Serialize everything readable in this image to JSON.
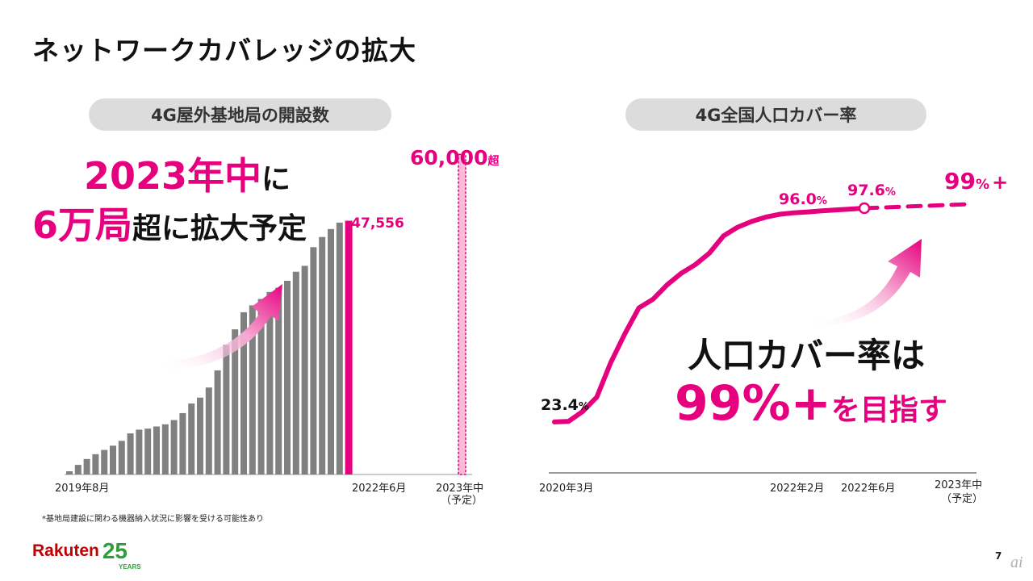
{
  "page": {
    "title": "ネットワークカバレッジの拡大",
    "page_number": "7",
    "footnote": "*基地局建設に関わる機器納入状況に影響を受ける可能性あり",
    "logo": {
      "word": "Rakuten",
      "number": "25",
      "years": "YEARS"
    },
    "watermark": "ai",
    "colors": {
      "accent": "#e6007e",
      "bar": "#808080",
      "pill": "#dcdcdc"
    }
  },
  "left_panel": {
    "pill_label": "4G屋外基地局の開設数",
    "headline": {
      "line1_pink": "2023年中",
      "line1_dark": "に",
      "line2_pink": "6万局",
      "line2_dark": "超に拡大予定"
    }
  },
  "right_panel": {
    "pill_label": "4G全国人口カバー率",
    "headline": {
      "line1": "人口カバー率は",
      "line2_pink": "99%+",
      "line2_dark": "を目指す"
    }
  },
  "chart_data": [
    {
      "type": "bar",
      "x_labels": {
        "start": "2019年8月",
        "mid": "2022年6月",
        "end_line1": "2023年中",
        "end_line2": "（予定）"
      },
      "values": [
        600,
        1800,
        2900,
        3800,
        4600,
        5400,
        6300,
        7700,
        8400,
        8600,
        9000,
        9400,
        10200,
        11500,
        13300,
        14400,
        16300,
        19500,
        24300,
        27200,
        30400,
        31700,
        32900,
        34200,
        35000,
        36300,
        38000,
        39100,
        42600,
        44500,
        46000,
        47200
      ],
      "highlight": {
        "label": "47,556",
        "value": 47556
      },
      "target": {
        "label": "60,000",
        "suffix": "超",
        "value": 60000
      },
      "ylim": [
        0,
        62000
      ]
    },
    {
      "type": "line",
      "x_labels": {
        "start": "2020年3月",
        "a": "2022年2月",
        "b": "2022年6月",
        "end_line1": "2023年中",
        "end_line2": "（予定）"
      },
      "points": [
        23.4,
        23.6,
        27.0,
        32.0,
        44.0,
        54.0,
        63.0,
        66.0,
        71.0,
        75.0,
        78.0,
        82.0,
        88.0,
        91.0,
        93.0,
        94.5,
        95.5,
        96.0,
        96.3,
        96.7,
        97.0,
        97.3,
        97.6
      ],
      "projection": [
        97.6,
        99.0
      ],
      "ylim": [
        20,
        100
      ],
      "labels": {
        "start": {
          "value": "23.4",
          "unit": "%"
        },
        "p1": {
          "value": "96.0",
          "unit": "%"
        },
        "p2": {
          "value": "97.6",
          "unit": "%"
        },
        "target": {
          "value": "99",
          "unit": "%",
          "plus": "+"
        }
      }
    }
  ]
}
